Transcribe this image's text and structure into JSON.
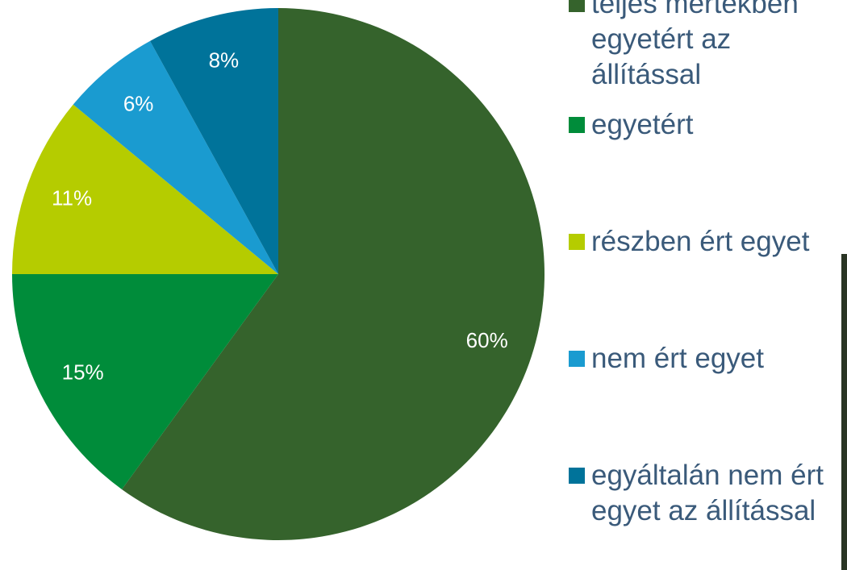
{
  "chart_data": {
    "type": "pie",
    "categories": [
      "teljes mértékben egyetért az állítással",
      "egyetért",
      "részben ért egyet",
      "nem ért egyet",
      "egyáltalán nem ért egyet az állítással"
    ],
    "values": [
      60,
      15,
      11,
      6,
      8
    ],
    "value_labels": [
      "60%",
      "15%",
      "11%",
      "6%",
      "8%"
    ],
    "colors": [
      "#35632c",
      "#008c3a",
      "#b5cc00",
      "#1a9bd0",
      "#00739a"
    ]
  }
}
